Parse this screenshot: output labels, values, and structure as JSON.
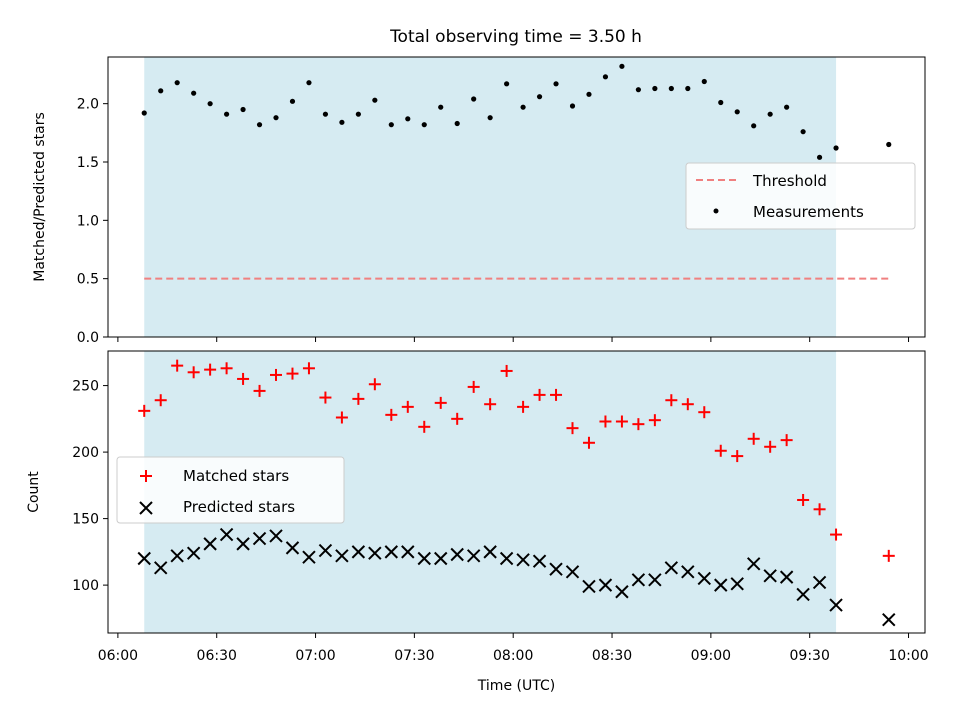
{
  "title": "Total observing time = 3.50 h",
  "colors": {
    "band": "#add8e6",
    "threshold": "#f08080",
    "measurements": "#000000",
    "matched": "#ff0000",
    "predicted": "#000000"
  },
  "chart_data": [
    {
      "type": "scatter",
      "title": "Total observing time = 3.50 h",
      "ylabel": "Matched/Predicted stars",
      "xlabel": "",
      "xlim_minutes": [
        357,
        605
      ],
      "ylim": [
        0,
        2.4
      ],
      "y_ticks": [
        0.0,
        0.5,
        1.0,
        1.5,
        2.0
      ],
      "y_tick_labels": [
        "0.0",
        "0.5",
        "1.0",
        "1.5",
        "2.0"
      ],
      "shaded_band_x": [
        "06:08",
        "09:38"
      ],
      "legend_position": "center-right",
      "legend": [
        "Threshold",
        "Measurements"
      ],
      "threshold": {
        "name": "Threshold",
        "y": 0.5,
        "x_range": [
          "06:08",
          "09:54"
        ]
      },
      "series": [
        {
          "name": "Measurements",
          "marker": "dot",
          "x": [
            "06:08",
            "06:13",
            "06:18",
            "06:23",
            "06:28",
            "06:33",
            "06:38",
            "06:43",
            "06:48",
            "06:53",
            "06:58",
            "07:03",
            "07:08",
            "07:13",
            "07:18",
            "07:23",
            "07:28",
            "07:33",
            "07:38",
            "07:43",
            "07:48",
            "07:53",
            "07:58",
            "08:03",
            "08:08",
            "08:13",
            "08:18",
            "08:23",
            "08:28",
            "08:33",
            "08:38",
            "08:43",
            "08:48",
            "08:53",
            "08:58",
            "09:03",
            "09:08",
            "09:13",
            "09:18",
            "09:23",
            "09:28",
            "09:33",
            "09:38",
            "09:54"
          ],
          "y": [
            1.92,
            2.11,
            2.18,
            2.09,
            2.0,
            1.91,
            1.95,
            1.82,
            1.88,
            2.02,
            2.18,
            1.91,
            1.84,
            1.91,
            2.03,
            1.82,
            1.87,
            1.82,
            1.97,
            1.83,
            2.04,
            1.88,
            2.17,
            1.97,
            2.06,
            2.17,
            1.98,
            2.08,
            2.23,
            2.32,
            2.12,
            2.13,
            2.13,
            2.13,
            2.19,
            2.01,
            1.93,
            1.81,
            1.91,
            1.97,
            1.76,
            1.54,
            1.62,
            1.65
          ]
        }
      ]
    },
    {
      "type": "scatter",
      "xlabel": "Time (UTC)",
      "ylabel": "Count",
      "xlim_minutes": [
        357,
        605
      ],
      "ylim": [
        64,
        276
      ],
      "y_ticks": [
        100,
        150,
        200,
        250
      ],
      "y_tick_labels": [
        "100",
        "150",
        "200",
        "250"
      ],
      "x_ticks": [
        "06:00",
        "06:30",
        "07:00",
        "07:30",
        "08:00",
        "08:30",
        "09:00",
        "09:30",
        "10:00"
      ],
      "shaded_band_x": [
        "06:08",
        "09:38"
      ],
      "legend_position": "center-left",
      "legend": [
        "Matched stars",
        "Predicted stars"
      ],
      "x": [
        "06:08",
        "06:13",
        "06:18",
        "06:23",
        "06:28",
        "06:33",
        "06:38",
        "06:43",
        "06:48",
        "06:53",
        "06:58",
        "07:03",
        "07:08",
        "07:13",
        "07:18",
        "07:23",
        "07:28",
        "07:33",
        "07:38",
        "07:43",
        "07:48",
        "07:53",
        "07:58",
        "08:03",
        "08:08",
        "08:13",
        "08:18",
        "08:23",
        "08:28",
        "08:33",
        "08:38",
        "08:43",
        "08:48",
        "08:53",
        "08:58",
        "09:03",
        "09:08",
        "09:13",
        "09:18",
        "09:23",
        "09:28",
        "09:33",
        "09:38",
        "09:54"
      ],
      "series": [
        {
          "name": "Matched stars",
          "marker": "plus",
          "values": [
            231,
            239,
            265,
            260,
            262,
            263,
            255,
            246,
            258,
            259,
            263,
            241,
            226,
            240,
            251,
            228,
            234,
            219,
            237,
            225,
            249,
            236,
            261,
            234,
            243,
            243,
            218,
            207,
            223,
            223,
            221,
            224,
            239,
            236,
            230,
            201,
            197,
            210,
            204,
            209,
            164,
            157,
            138,
            122
          ]
        },
        {
          "name": "Predicted stars",
          "marker": "x",
          "values": [
            120,
            113,
            122,
            124,
            131,
            138,
            131,
            135,
            137,
            128,
            121,
            126,
            122,
            125,
            124,
            125,
            125,
            120,
            120,
            123,
            122,
            125,
            120,
            119,
            118,
            112,
            110,
            99,
            100,
            95,
            104,
            104,
            113,
            110,
            105,
            100,
            101,
            116,
            107,
            106,
            93,
            102,
            85,
            74
          ]
        }
      ]
    }
  ]
}
